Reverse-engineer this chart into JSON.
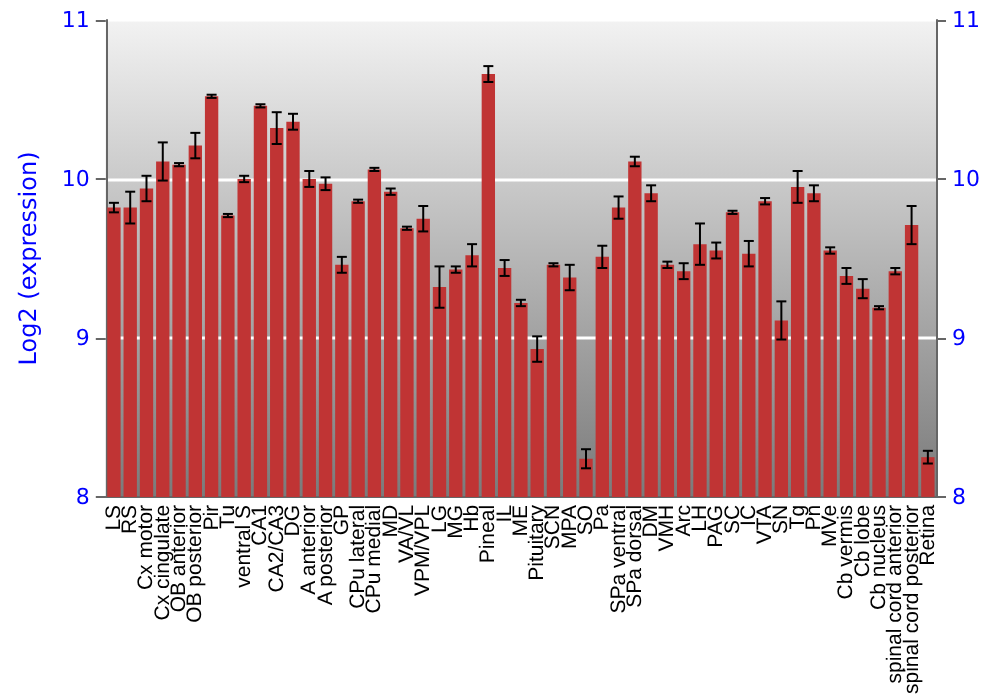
{
  "chart_data": {
    "type": "bar",
    "ylabel": "Log2 (expression)",
    "categories": [
      "LS",
      "RS",
      "Cx motor",
      "Cx cingulate",
      "OB anterior",
      "OB posterior",
      "Pir",
      "Tu",
      "ventral S",
      "CA1",
      "CA2/CA3",
      "DG",
      "A anterior",
      "A posterior",
      "GP",
      "CPu lateral",
      "CPu medial",
      "MD",
      "VA/VL",
      "VPM/VPL",
      "LG",
      "MG",
      "Hb",
      "Pineal",
      "IL",
      "ME",
      "Pituitary",
      "SCN",
      "MPA",
      "SO",
      "Pa",
      "SPa ventral",
      "SPa dorsal",
      "DM",
      "VMH",
      "Arc",
      "LH",
      "PAG",
      "SC",
      "IC",
      "VTA",
      "SN",
      "Tg",
      "Pn",
      "MVe",
      "Cb vermis",
      "Cb lobe",
      "Cb nucleus",
      "spinal cord anterior",
      "spinal cord posterior",
      "Retina"
    ],
    "series": [
      {
        "color": "#c03434",
        "values": [
          9.82,
          9.82,
          9.94,
          10.11,
          10.09,
          10.21,
          10.52,
          9.77,
          10.0,
          10.46,
          10.32,
          10.36,
          10.0,
          9.97,
          9.46,
          9.86,
          10.06,
          9.92,
          9.69,
          9.75,
          9.32,
          9.43,
          9.52,
          10.66,
          9.44,
          9.22,
          8.93,
          9.46,
          9.38,
          8.24,
          9.51,
          9.82,
          10.11,
          9.91,
          9.46,
          9.42,
          9.59,
          9.55,
          9.79,
          9.53,
          9.86,
          9.11,
          9.95,
          9.91,
          9.55,
          9.39,
          9.31,
          9.19,
          9.42,
          9.71,
          8.25
        ],
        "errors": [
          0.03,
          0.1,
          0.08,
          0.12,
          0.01,
          0.08,
          0.01,
          0.01,
          0.02,
          0.01,
          0.1,
          0.05,
          0.05,
          0.04,
          0.05,
          0.01,
          0.01,
          0.02,
          0.01,
          0.08,
          0.13,
          0.02,
          0.07,
          0.05,
          0.05,
          0.02,
          0.08,
          0.01,
          0.08,
          0.06,
          0.07,
          0.07,
          0.03,
          0.05,
          0.02,
          0.05,
          0.13,
          0.05,
          0.01,
          0.08,
          0.02,
          0.12,
          0.1,
          0.05,
          0.02,
          0.05,
          0.06,
          0.01,
          0.02,
          0.12,
          0.04
        ]
      }
    ],
    "ylim": [
      8,
      11
    ],
    "yticks": [
      8,
      9,
      10,
      11
    ],
    "y2lim": [
      8,
      11
    ],
    "y2ticks": [
      8,
      9,
      10,
      11
    ],
    "grid": "y"
  }
}
